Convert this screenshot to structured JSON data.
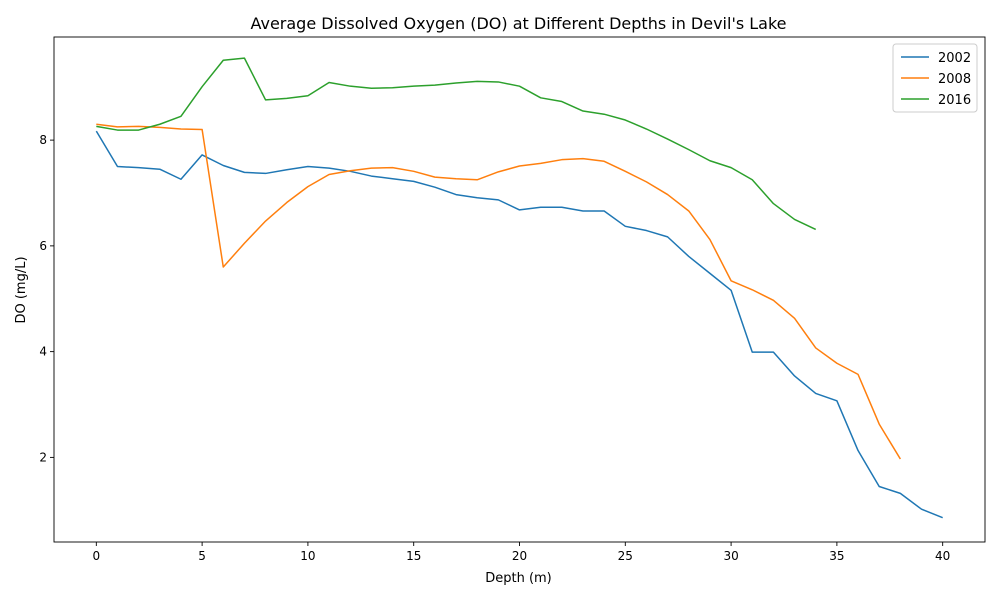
{
  "chart_data": {
    "type": "line",
    "title": "Average Dissolved Oxygen (DO) at Different Depths in Devil's Lake",
    "xlabel": "Depth (m)",
    "ylabel": "DO (mg/L)",
    "xlim": [
      -2,
      42
    ],
    "ylim": [
      0.4,
      9.95
    ],
    "xticks": [
      0,
      5,
      10,
      15,
      20,
      25,
      30,
      35,
      40
    ],
    "yticks": [
      2,
      4,
      6,
      8
    ],
    "grid": false,
    "legend_position": "top-right",
    "series": [
      {
        "name": "2002",
        "color": "#1f77b4",
        "x": [
          0,
          1,
          2,
          3,
          4,
          5,
          6,
          7,
          8,
          9,
          10,
          11,
          12,
          13,
          14,
          15,
          16,
          17,
          18,
          19,
          20,
          21,
          22,
          23,
          24,
          25,
          26,
          27,
          28,
          29,
          30,
          31,
          32,
          33,
          34,
          35,
          36,
          37,
          38,
          39,
          40
        ],
        "values": [
          8.17,
          7.5,
          7.48,
          7.45,
          7.26,
          7.72,
          7.52,
          7.39,
          7.37,
          7.44,
          7.5,
          7.47,
          7.41,
          7.32,
          7.27,
          7.22,
          7.11,
          6.97,
          6.91,
          6.87,
          6.68,
          6.73,
          6.73,
          6.66,
          6.66,
          6.37,
          6.29,
          6.17,
          5.8,
          5.48,
          5.16,
          3.99,
          3.99,
          3.54,
          3.21,
          3.07,
          2.13,
          1.45,
          1.32,
          1.02,
          0.86
        ]
      },
      {
        "name": "2008",
        "color": "#ff7f0e",
        "x": [
          0,
          1,
          2,
          3,
          4,
          5,
          6,
          7,
          8,
          9,
          10,
          11,
          12,
          13,
          14,
          15,
          16,
          17,
          18,
          19,
          20,
          21,
          22,
          23,
          24,
          25,
          26,
          27,
          28,
          29,
          30,
          31,
          32,
          33,
          34,
          35,
          36,
          37,
          38
        ],
        "values": [
          8.3,
          8.25,
          8.26,
          8.24,
          8.21,
          8.2,
          5.6,
          6.05,
          6.47,
          6.82,
          7.12,
          7.35,
          7.42,
          7.47,
          7.48,
          7.41,
          7.3,
          7.27,
          7.25,
          7.4,
          7.51,
          7.56,
          7.63,
          7.65,
          7.6,
          7.41,
          7.21,
          6.97,
          6.66,
          6.12,
          5.34,
          5.17,
          4.97,
          4.63,
          4.07,
          3.78,
          3.57,
          2.63,
          1.97
        ]
      },
      {
        "name": "2016",
        "color": "#2ca02c",
        "x": [
          0,
          1,
          2,
          3,
          4,
          5,
          6,
          7,
          8,
          9,
          10,
          11,
          12,
          13,
          14,
          15,
          16,
          17,
          18,
          19,
          20,
          21,
          22,
          23,
          24,
          25,
          26,
          27,
          28,
          29,
          30,
          31,
          32,
          33,
          34
        ],
        "values": [
          8.26,
          8.19,
          8.19,
          8.3,
          8.45,
          9.01,
          9.51,
          9.55,
          8.76,
          8.79,
          8.84,
          9.09,
          9.02,
          8.98,
          8.99,
          9.02,
          9.04,
          9.08,
          9.11,
          9.1,
          9.02,
          8.8,
          8.73,
          8.55,
          8.49,
          8.38,
          8.21,
          8.02,
          7.82,
          7.61,
          7.48,
          7.25,
          6.8,
          6.5,
          6.31
        ]
      }
    ]
  }
}
